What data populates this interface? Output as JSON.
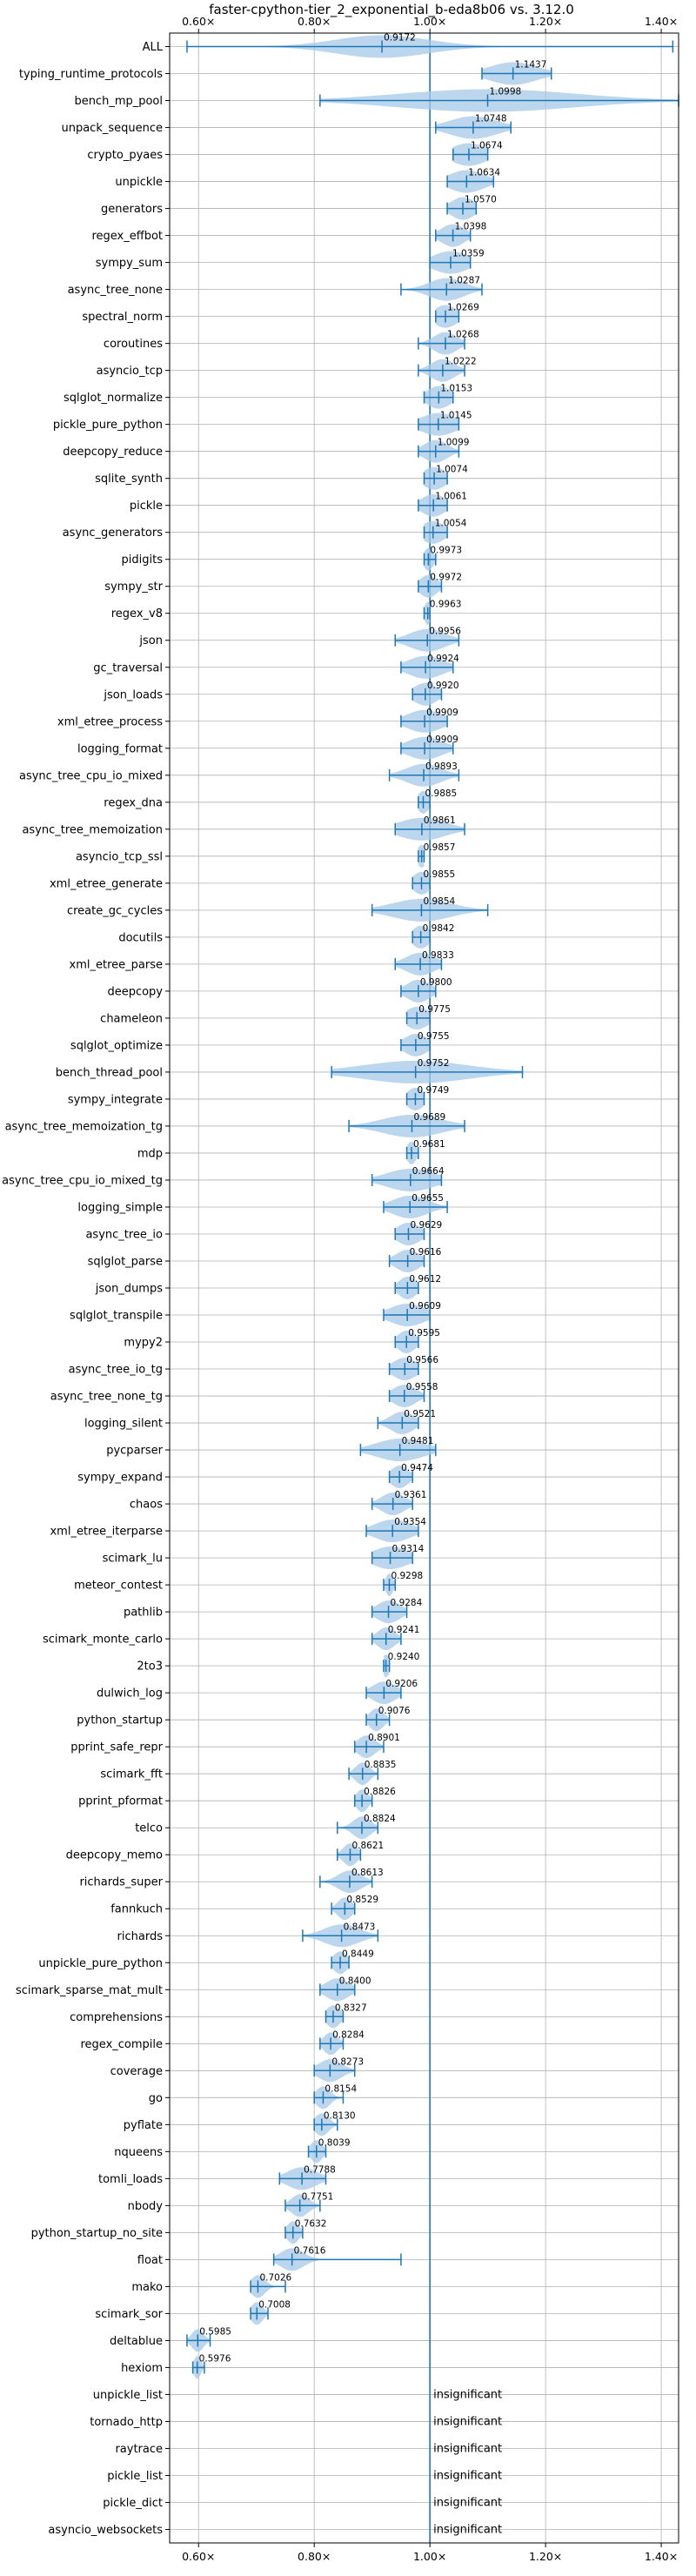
{
  "chart_data": {
    "type": "violin",
    "title": "faster-cpython-tier_2_exponential_b-eda8b06 vs. 3.12.0",
    "xlim": [
      0.55,
      1.43
    ],
    "xticks": [
      0.6,
      0.8,
      1.0,
      1.2,
      1.4
    ],
    "xtick_labels": [
      "0.60×",
      "0.80×",
      "1.00×",
      "1.20×",
      "1.40×"
    ],
    "reference_line": 1.0,
    "grid": true,
    "colors": {
      "violin": "#a6c8e8",
      "line": "#1f77b4",
      "text": "#000000"
    },
    "insignificant_label": "insignificant",
    "benchmarks": [
      {
        "name": "ALL",
        "mean": 0.9172,
        "mean_label": "0.9172",
        "min": 0.58,
        "max": 1.42,
        "spread": 0.08
      },
      {
        "name": "typing_runtime_protocols",
        "mean": 1.1437,
        "mean_label": "1.1437",
        "min": 1.09,
        "max": 1.21,
        "spread": 0.04
      },
      {
        "name": "bench_mp_pool",
        "mean": 1.0998,
        "mean_label": "1.0998",
        "min": 0.81,
        "max": 1.43,
        "spread": 0.15
      },
      {
        "name": "unpack_sequence",
        "mean": 1.0748,
        "mean_label": "1.0748",
        "min": 1.01,
        "max": 1.14,
        "spread": 0.04
      },
      {
        "name": "crypto_pyaes",
        "mean": 1.0674,
        "mean_label": "1.0674",
        "min": 1.04,
        "max": 1.1,
        "spread": 0.03
      },
      {
        "name": "unpickle",
        "mean": 1.0634,
        "mean_label": "1.0634",
        "min": 1.03,
        "max": 1.11,
        "spread": 0.03
      },
      {
        "name": "generators",
        "mean": 1.057,
        "mean_label": "1.0570",
        "min": 1.03,
        "max": 1.08,
        "spread": 0.02
      },
      {
        "name": "regex_effbot",
        "mean": 1.0398,
        "mean_label": "1.0398",
        "min": 1.01,
        "max": 1.07,
        "spread": 0.02
      },
      {
        "name": "sympy_sum",
        "mean": 1.0359,
        "mean_label": "1.0359",
        "min": 1.0,
        "max": 1.07,
        "spread": 0.03
      },
      {
        "name": "async_tree_none",
        "mean": 1.0287,
        "mean_label": "1.0287",
        "min": 0.95,
        "max": 1.09,
        "spread": 0.03
      },
      {
        "name": "spectral_norm",
        "mean": 1.0269,
        "mean_label": "1.0269",
        "min": 1.01,
        "max": 1.05,
        "spread": 0.02
      },
      {
        "name": "coroutines",
        "mean": 1.0268,
        "mean_label": "1.0268",
        "min": 0.98,
        "max": 1.06,
        "spread": 0.02
      },
      {
        "name": "asyncio_tcp",
        "mean": 1.0222,
        "mean_label": "1.0222",
        "min": 0.98,
        "max": 1.06,
        "spread": 0.02
      },
      {
        "name": "sqlglot_normalize",
        "mean": 1.0153,
        "mean_label": "1.0153",
        "min": 0.99,
        "max": 1.04,
        "spread": 0.02
      },
      {
        "name": "pickle_pure_python",
        "mean": 1.0145,
        "mean_label": "1.0145",
        "min": 0.98,
        "max": 1.05,
        "spread": 0.03
      },
      {
        "name": "deepcopy_reduce",
        "mean": 1.0099,
        "mean_label": "1.0099",
        "min": 0.98,
        "max": 1.05,
        "spread": 0.02
      },
      {
        "name": "sqlite_synth",
        "mean": 1.0074,
        "mean_label": "1.0074",
        "min": 0.99,
        "max": 1.03,
        "spread": 0.02
      },
      {
        "name": "pickle",
        "mean": 1.0061,
        "mean_label": "1.0061",
        "min": 0.98,
        "max": 1.03,
        "spread": 0.02
      },
      {
        "name": "async_generators",
        "mean": 1.0054,
        "mean_label": "1.0054",
        "min": 0.99,
        "max": 1.03,
        "spread": 0.02
      },
      {
        "name": "pidigits",
        "mean": 0.9973,
        "mean_label": "0.9973",
        "min": 0.99,
        "max": 1.01,
        "spread": 0.008
      },
      {
        "name": "sympy_str",
        "mean": 0.9972,
        "mean_label": "0.9972",
        "min": 0.98,
        "max": 1.02,
        "spread": 0.015
      },
      {
        "name": "regex_v8",
        "mean": 0.9963,
        "mean_label": "0.9963",
        "min": 0.99,
        "max": 1.0,
        "spread": 0.006
      },
      {
        "name": "json",
        "mean": 0.9956,
        "mean_label": "0.9956",
        "min": 0.94,
        "max": 1.05,
        "spread": 0.03
      },
      {
        "name": "gc_traversal",
        "mean": 0.9924,
        "mean_label": "0.9924",
        "min": 0.95,
        "max": 1.04,
        "spread": 0.03
      },
      {
        "name": "json_loads",
        "mean": 0.992,
        "mean_label": "0.9920",
        "min": 0.97,
        "max": 1.02,
        "spread": 0.02
      },
      {
        "name": "xml_etree_process",
        "mean": 0.9909,
        "mean_label": "0.9909",
        "min": 0.95,
        "max": 1.03,
        "spread": 0.03
      },
      {
        "name": "logging_format",
        "mean": 0.9909,
        "mean_label": "0.9909",
        "min": 0.95,
        "max": 1.04,
        "spread": 0.03
      },
      {
        "name": "async_tree_cpu_io_mixed",
        "mean": 0.9893,
        "mean_label": "0.9893",
        "min": 0.93,
        "max": 1.05,
        "spread": 0.03
      },
      {
        "name": "regex_dna",
        "mean": 0.9885,
        "mean_label": "0.9885",
        "min": 0.98,
        "max": 1.0,
        "spread": 0.01
      },
      {
        "name": "async_tree_memoization",
        "mean": 0.9861,
        "mean_label": "0.9861",
        "min": 0.94,
        "max": 1.06,
        "spread": 0.04
      },
      {
        "name": "asyncio_tcp_ssl",
        "mean": 0.9857,
        "mean_label": "0.9857",
        "min": 0.98,
        "max": 0.99,
        "spread": 0.008
      },
      {
        "name": "xml_etree_generate",
        "mean": 0.9855,
        "mean_label": "0.9855",
        "min": 0.97,
        "max": 1.0,
        "spread": 0.015
      },
      {
        "name": "create_gc_cycles",
        "mean": 0.9854,
        "mean_label": "0.9854",
        "min": 0.9,
        "max": 1.1,
        "spread": 0.05
      },
      {
        "name": "docutils",
        "mean": 0.9842,
        "mean_label": "0.9842",
        "min": 0.97,
        "max": 1.0,
        "spread": 0.015
      },
      {
        "name": "xml_etree_parse",
        "mean": 0.9833,
        "mean_label": "0.9833",
        "min": 0.94,
        "max": 1.02,
        "spread": 0.025
      },
      {
        "name": "deepcopy",
        "mean": 0.98,
        "mean_label": "0.9800",
        "min": 0.95,
        "max": 1.01,
        "spread": 0.02
      },
      {
        "name": "chameleon",
        "mean": 0.9775,
        "mean_label": "0.9775",
        "min": 0.96,
        "max": 1.0,
        "spread": 0.02
      },
      {
        "name": "sqlglot_optimize",
        "mean": 0.9755,
        "mean_label": "0.9755",
        "min": 0.95,
        "max": 1.0,
        "spread": 0.02
      },
      {
        "name": "bench_thread_pool",
        "mean": 0.9752,
        "mean_label": "0.9752",
        "min": 0.83,
        "max": 1.16,
        "spread": 0.09
      },
      {
        "name": "sympy_integrate",
        "mean": 0.9749,
        "mean_label": "0.9749",
        "min": 0.96,
        "max": 0.99,
        "spread": 0.015
      },
      {
        "name": "async_tree_memoization_tg",
        "mean": 0.9689,
        "mean_label": "0.9689",
        "min": 0.86,
        "max": 1.06,
        "spread": 0.05
      },
      {
        "name": "mdp",
        "mean": 0.9681,
        "mean_label": "0.9681",
        "min": 0.96,
        "max": 0.98,
        "spread": 0.008
      },
      {
        "name": "async_tree_cpu_io_mixed_tg",
        "mean": 0.9664,
        "mean_label": "0.9664",
        "min": 0.9,
        "max": 1.02,
        "spread": 0.04
      },
      {
        "name": "logging_simple",
        "mean": 0.9655,
        "mean_label": "0.9655",
        "min": 0.92,
        "max": 1.03,
        "spread": 0.03
      },
      {
        "name": "async_tree_io",
        "mean": 0.9629,
        "mean_label": "0.9629",
        "min": 0.94,
        "max": 0.99,
        "spread": 0.02
      },
      {
        "name": "sqlglot_parse",
        "mean": 0.9616,
        "mean_label": "0.9616",
        "min": 0.93,
        "max": 0.99,
        "spread": 0.02
      },
      {
        "name": "json_dumps",
        "mean": 0.9612,
        "mean_label": "0.9612",
        "min": 0.94,
        "max": 0.98,
        "spread": 0.015
      },
      {
        "name": "sqlglot_transpile",
        "mean": 0.9609,
        "mean_label": "0.9609",
        "min": 0.92,
        "max": 1.0,
        "spread": 0.03
      },
      {
        "name": "mypy2",
        "mean": 0.9595,
        "mean_label": "0.9595",
        "min": 0.94,
        "max": 0.98,
        "spread": 0.015
      },
      {
        "name": "async_tree_io_tg",
        "mean": 0.9566,
        "mean_label": "0.9566",
        "min": 0.93,
        "max": 0.98,
        "spread": 0.02
      },
      {
        "name": "async_tree_none_tg",
        "mean": 0.9558,
        "mean_label": "0.9558",
        "min": 0.93,
        "max": 0.99,
        "spread": 0.02
      },
      {
        "name": "logging_silent",
        "mean": 0.9521,
        "mean_label": "0.9521",
        "min": 0.91,
        "max": 0.98,
        "spread": 0.02
      },
      {
        "name": "pycparser",
        "mean": 0.9481,
        "mean_label": "0.9481",
        "min": 0.88,
        "max": 1.01,
        "spread": 0.04
      },
      {
        "name": "sympy_expand",
        "mean": 0.9474,
        "mean_label": "0.9474",
        "min": 0.93,
        "max": 0.97,
        "spread": 0.015
      },
      {
        "name": "chaos",
        "mean": 0.9361,
        "mean_label": "0.9361",
        "min": 0.9,
        "max": 0.97,
        "spread": 0.02
      },
      {
        "name": "xml_etree_iterparse",
        "mean": 0.9354,
        "mean_label": "0.9354",
        "min": 0.89,
        "max": 0.98,
        "spread": 0.03
      },
      {
        "name": "scimark_lu",
        "mean": 0.9314,
        "mean_label": "0.9314",
        "min": 0.9,
        "max": 0.97,
        "spread": 0.03
      },
      {
        "name": "meteor_contest",
        "mean": 0.9298,
        "mean_label": "0.9298",
        "min": 0.92,
        "max": 0.94,
        "spread": 0.006
      },
      {
        "name": "pathlib",
        "mean": 0.9284,
        "mean_label": "0.9284",
        "min": 0.9,
        "max": 0.96,
        "spread": 0.02
      },
      {
        "name": "scimark_monte_carlo",
        "mean": 0.9241,
        "mean_label": "0.9241",
        "min": 0.9,
        "max": 0.95,
        "spread": 0.015
      },
      {
        "name": "2to3",
        "mean": 0.924,
        "mean_label": "0.9240",
        "min": 0.92,
        "max": 0.93,
        "spread": 0.006
      },
      {
        "name": "dulwich_log",
        "mean": 0.9206,
        "mean_label": "0.9206",
        "min": 0.89,
        "max": 0.95,
        "spread": 0.02
      },
      {
        "name": "python_startup",
        "mean": 0.9076,
        "mean_label": "0.9076",
        "min": 0.89,
        "max": 0.93,
        "spread": 0.012
      },
      {
        "name": "pprint_safe_repr",
        "mean": 0.8901,
        "mean_label": "0.8901",
        "min": 0.87,
        "max": 0.92,
        "spread": 0.015
      },
      {
        "name": "scimark_fft",
        "mean": 0.8835,
        "mean_label": "0.8835",
        "min": 0.86,
        "max": 0.91,
        "spread": 0.012
      },
      {
        "name": "pprint_pformat",
        "mean": 0.8826,
        "mean_label": "0.8826",
        "min": 0.87,
        "max": 0.9,
        "spread": 0.01
      },
      {
        "name": "telco",
        "mean": 0.8824,
        "mean_label": "0.8824",
        "min": 0.84,
        "max": 0.91,
        "spread": 0.015
      },
      {
        "name": "deepcopy_memo",
        "mean": 0.8621,
        "mean_label": "0.8621",
        "min": 0.84,
        "max": 0.88,
        "spread": 0.012
      },
      {
        "name": "richards_super",
        "mean": 0.8613,
        "mean_label": "0.8613",
        "min": 0.81,
        "max": 0.9,
        "spread": 0.02
      },
      {
        "name": "fannkuch",
        "mean": 0.8529,
        "mean_label": "0.8529",
        "min": 0.83,
        "max": 0.87,
        "spread": 0.012
      },
      {
        "name": "richards",
        "mean": 0.8473,
        "mean_label": "0.8473",
        "min": 0.78,
        "max": 0.91,
        "spread": 0.03
      },
      {
        "name": "unpickle_pure_python",
        "mean": 0.8449,
        "mean_label": "0.8449",
        "min": 0.83,
        "max": 0.86,
        "spread": 0.012
      },
      {
        "name": "scimark_sparse_mat_mult",
        "mean": 0.84,
        "mean_label": "0.8400",
        "min": 0.81,
        "max": 0.87,
        "spread": 0.02
      },
      {
        "name": "comprehensions",
        "mean": 0.8327,
        "mean_label": "0.8327",
        "min": 0.82,
        "max": 0.85,
        "spread": 0.012
      },
      {
        "name": "regex_compile",
        "mean": 0.8284,
        "mean_label": "0.8284",
        "min": 0.81,
        "max": 0.85,
        "spread": 0.012
      },
      {
        "name": "coverage",
        "mean": 0.8273,
        "mean_label": "0.8273",
        "min": 0.8,
        "max": 0.87,
        "spread": 0.02
      },
      {
        "name": "go",
        "mean": 0.8154,
        "mean_label": "0.8154",
        "min": 0.8,
        "max": 0.85,
        "spread": 0.012
      },
      {
        "name": "pyflate",
        "mean": 0.813,
        "mean_label": "0.8130",
        "min": 0.8,
        "max": 0.84,
        "spread": 0.012
      },
      {
        "name": "nqueens",
        "mean": 0.8039,
        "mean_label": "0.8039",
        "min": 0.79,
        "max": 0.82,
        "spread": 0.01
      },
      {
        "name": "tomli_loads",
        "mean": 0.7788,
        "mean_label": "0.7788",
        "min": 0.74,
        "max": 0.82,
        "spread": 0.025
      },
      {
        "name": "nbody",
        "mean": 0.7751,
        "mean_label": "0.7751",
        "min": 0.75,
        "max": 0.81,
        "spread": 0.015
      },
      {
        "name": "python_startup_no_site",
        "mean": 0.7632,
        "mean_label": "0.7632",
        "min": 0.75,
        "max": 0.78,
        "spread": 0.01
      },
      {
        "name": "float",
        "mean": 0.7616,
        "mean_label": "0.7616",
        "min": 0.73,
        "max": 0.95,
        "spread": 0.02
      },
      {
        "name": "mako",
        "mean": 0.7026,
        "mean_label": "0.7026",
        "min": 0.69,
        "max": 0.75,
        "spread": 0.012
      },
      {
        "name": "scimark_sor",
        "mean": 0.7008,
        "mean_label": "0.7008",
        "min": 0.69,
        "max": 0.72,
        "spread": 0.01
      },
      {
        "name": "deltablue",
        "mean": 0.5985,
        "mean_label": "0.5985",
        "min": 0.58,
        "max": 0.62,
        "spread": 0.01
      },
      {
        "name": "hexiom",
        "mean": 0.5976,
        "mean_label": "0.5976",
        "min": 0.59,
        "max": 0.61,
        "spread": 0.006
      },
      {
        "name": "unpickle_list",
        "insignificant": true
      },
      {
        "name": "tornado_http",
        "insignificant": true
      },
      {
        "name": "raytrace",
        "insignificant": true
      },
      {
        "name": "pickle_list",
        "insignificant": true
      },
      {
        "name": "pickle_dict",
        "insignificant": true
      },
      {
        "name": "asyncio_websockets",
        "insignificant": true
      }
    ]
  }
}
